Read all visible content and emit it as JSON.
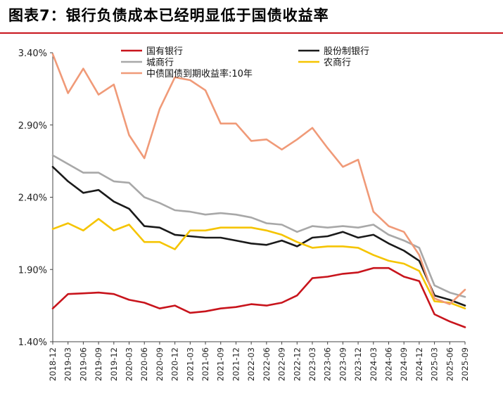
{
  "title": "图表7：银行负债成本已经明显低于国债收益率",
  "chart_data": {
    "type": "line",
    "title": "图表7：银行负债成本已经明显低于国债收益率",
    "ylim": [
      1.4,
      3.4
    ],
    "yticks": [
      "1.40%",
      "1.90%",
      "2.40%",
      "2.90%",
      "3.40%"
    ],
    "ytick_values": [
      1.4,
      1.9,
      2.4,
      2.9,
      3.4
    ],
    "xlabels": [
      "2018-12",
      "2019-03",
      "2019-06",
      "2019-09",
      "2019-12",
      "2020-03",
      "2020-06",
      "2020-09",
      "2020-12",
      "2021-03",
      "2021-06",
      "2021-09",
      "2021-12",
      "2022-03",
      "2022-06",
      "2022-09",
      "2022-12",
      "2023-03",
      "2023-06",
      "2023-09",
      "2023-12",
      "2024-03",
      "2024-06",
      "2024-09",
      "2024-12",
      "2025-03",
      "2025-06",
      "2025-09"
    ],
    "series": [
      {
        "name": "国有银行",
        "color": "#c8141c",
        "values": [
          1.63,
          1.73,
          1.735,
          1.74,
          1.73,
          1.69,
          1.67,
          1.63,
          1.65,
          1.6,
          1.61,
          1.63,
          1.64,
          1.66,
          1.65,
          1.67,
          1.72,
          1.84,
          1.85,
          1.87,
          1.88,
          1.91,
          1.91,
          1.85,
          1.82,
          1.59,
          1.54,
          1.5
        ]
      },
      {
        "name": "股份制银行",
        "color": "#1a1a1a",
        "values": [
          2.61,
          2.51,
          2.43,
          2.45,
          2.37,
          2.32,
          2.2,
          2.19,
          2.14,
          2.13,
          2.12,
          2.12,
          2.1,
          2.08,
          2.07,
          2.1,
          2.06,
          2.12,
          2.13,
          2.16,
          2.12,
          2.14,
          2.08,
          2.03,
          1.96,
          1.72,
          1.69,
          1.65
        ]
      },
      {
        "name": "城商行",
        "color": "#a8a8a8",
        "values": [
          2.69,
          2.63,
          2.57,
          2.57,
          2.51,
          2.5,
          2.4,
          2.36,
          2.31,
          2.3,
          2.28,
          2.29,
          2.28,
          2.26,
          2.22,
          2.21,
          2.16,
          2.2,
          2.19,
          2.2,
          2.19,
          2.21,
          2.14,
          2.1,
          2.05,
          1.79,
          1.74,
          1.71
        ]
      },
      {
        "name": "农商行",
        "color": "#f5c400",
        "values": [
          2.18,
          2.22,
          2.17,
          2.25,
          2.17,
          2.21,
          2.09,
          2.09,
          2.04,
          2.17,
          2.17,
          2.19,
          2.19,
          2.19,
          2.17,
          2.14,
          2.09,
          2.05,
          2.06,
          2.06,
          2.05,
          2.0,
          1.96,
          1.94,
          1.89,
          1.68,
          1.67,
          1.63
        ]
      },
      {
        "name": "中债国债到期收益率:10年",
        "color": "#f09a78",
        "values": [
          3.39,
          3.12,
          3.29,
          3.11,
          3.18,
          2.83,
          2.67,
          3.01,
          3.23,
          3.21,
          3.14,
          2.91,
          2.91,
          2.79,
          2.8,
          2.73,
          2.8,
          2.88,
          2.74,
          2.61,
          2.66,
          2.3,
          2.2,
          2.16,
          2.0,
          1.7,
          1.66,
          1.76
        ]
      }
    ],
    "legend": {
      "placement": "top",
      "columns": 2
    }
  }
}
